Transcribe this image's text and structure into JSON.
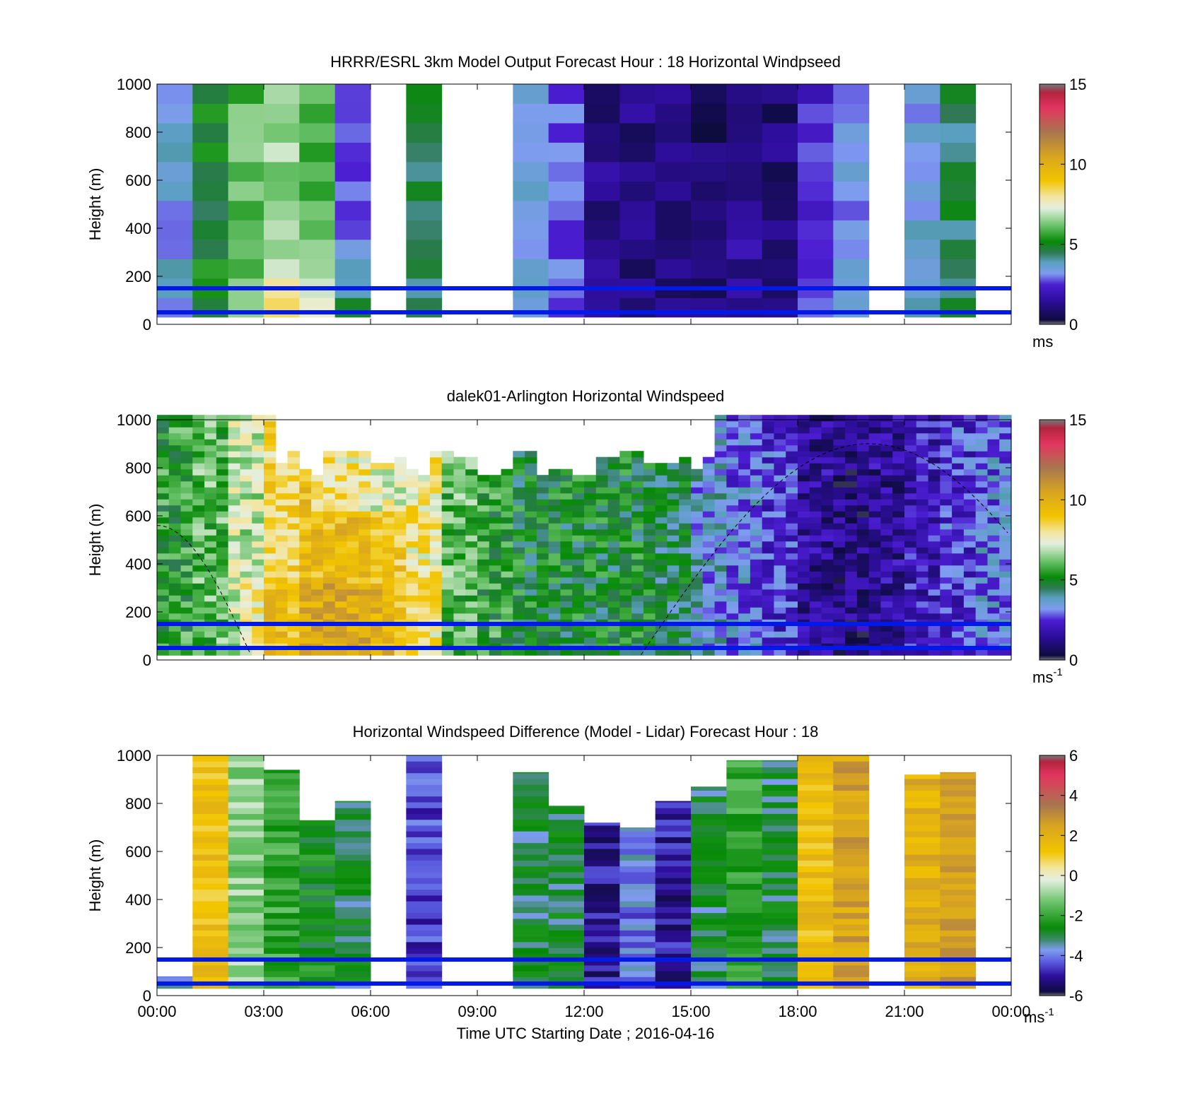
{
  "figure": {
    "x_ticks": [
      "00:00",
      "03:00",
      "06:00",
      "09:00",
      "12:00",
      "15:00",
      "18:00",
      "21:00",
      "00:00"
    ],
    "x_label": "Time UTC  Starting Date ; 2016-04-16"
  },
  "chart_data": [
    {
      "type": "heatmap",
      "title": "HRRR/ESRL 3km Model Output   Forecast Hour : 18 Horizontal Windpseed",
      "ylabel": "Height (m)",
      "ylim": [
        0,
        1000
      ],
      "y_ticks": [
        "0",
        "200",
        "400",
        "600",
        "800",
        "1000"
      ],
      "colorbar": {
        "range": [
          0,
          15
        ],
        "ticks": [
          "0",
          "5",
          "10",
          "15"
        ],
        "unit": "ms"
      },
      "reference_lines_m": [
        150,
        50
      ],
      "hourly_mean_windspeed": [
        3.5,
        5.0,
        6.0,
        6.5,
        6.0,
        3.0,
        null,
        4.5,
        null,
        null,
        3.5,
        3.0,
        1.2,
        1.2,
        1.0,
        0.9,
        1.5,
        1.0,
        2.5,
        3.2,
        null,
        3.5,
        4.5,
        null
      ]
    },
    {
      "type": "heatmap",
      "title": "dalek01-Arlington  Horizontal Windspeed",
      "ylabel": "Height (m)",
      "ylim": [
        0,
        1000
      ],
      "y_ticks": [
        "0",
        "200",
        "400",
        "600",
        "800",
        "1000"
      ],
      "colorbar": {
        "range": [
          0,
          15
        ],
        "ticks": [
          "0",
          "5",
          "10",
          "15"
        ],
        "unit": "ms",
        "unit_exp": "-1"
      },
      "reference_lines_m": [
        150,
        50
      ],
      "hourly_mean_windspeed": [
        5.5,
        6.0,
        7.0,
        8.5,
        9.5,
        9.5,
        9.0,
        8.0,
        6.0,
        5.5,
        5.0,
        5.0,
        5.0,
        5.0,
        4.5,
        3.5,
        3.0,
        2.5,
        1.5,
        1.2,
        1.5,
        2.0,
        2.5,
        3.0
      ]
    },
    {
      "type": "heatmap",
      "title": "Horizontal Windspeed Difference (Model - Lidar) Forecast Hour : 18",
      "ylabel": "Height (m)",
      "ylim": [
        0,
        1000
      ],
      "y_ticks": [
        "0",
        "200",
        "400",
        "600",
        "800",
        "1000"
      ],
      "colorbar": {
        "range": [
          -6,
          6
        ],
        "ticks": [
          "-6",
          "-4",
          "-2",
          "0",
          "2",
          "4",
          "6"
        ],
        "unit": "ms",
        "unit_exp": "-1"
      },
      "reference_lines_m": [
        150,
        50
      ],
      "hourly_mean_difference": [
        -3.5,
        1.5,
        -1.0,
        -2.0,
        -2.5,
        -3.0,
        null,
        -4.5,
        null,
        null,
        -3.0,
        -3.0,
        -5.0,
        -4.0,
        -5.0,
        -3.0,
        -2.0,
        -3.0,
        1.5,
        2.5,
        null,
        2.0,
        2.5,
        null
      ]
    }
  ]
}
